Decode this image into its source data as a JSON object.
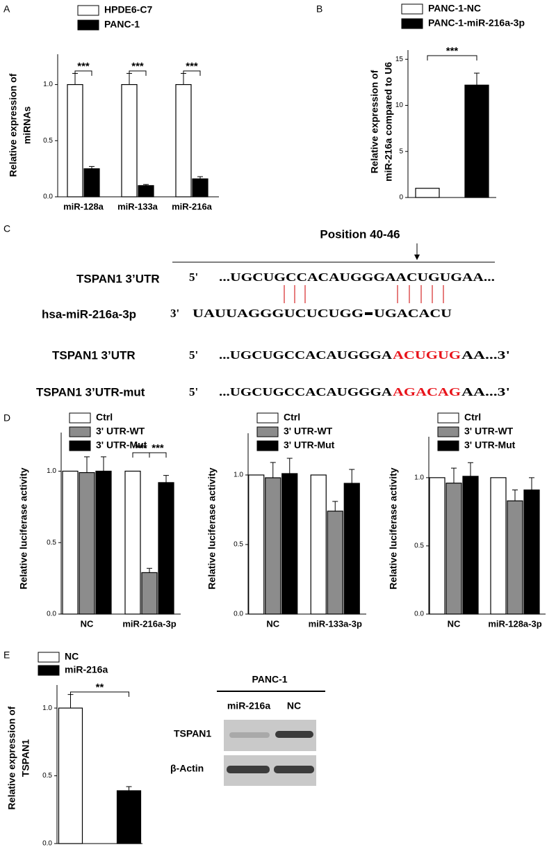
{
  "panel_labels": [
    "A",
    "B",
    "C",
    "D",
    "E"
  ],
  "chart_data": [
    {
      "type": "bar",
      "y_label": [
        "Relative  expression of",
        "miRNAs"
      ],
      "categories": [
        "miR-128a",
        "miR-133a",
        "miR-216a"
      ],
      "series": [
        {
          "name": "HPDE6-C7",
          "color": "#ffffff",
          "values": [
            1,
            1,
            1
          ],
          "errors": [
            0.1,
            0.1,
            0.1
          ]
        },
        {
          "name": "PANC-1",
          "color": "#000000",
          "values": [
            0.25,
            0.1,
            0.16
          ],
          "errors": [
            0.02,
            0.01,
            0.02
          ]
        }
      ],
      "ylim": [
        0,
        1.27
      ],
      "yticks": [
        {
          "value": 0,
          "label": "0.0"
        },
        {
          "value": 0.5,
          "label": "0.5"
        },
        {
          "value": 1,
          "label": "1.0"
        }
      ],
      "annotations": [
        "***",
        "***",
        "***"
      ]
    },
    {
      "type": "bar",
      "y_label": [
        "Relative expression of",
        "miR-216a compared to U6"
      ],
      "categories": [
        null
      ],
      "series": [
        {
          "name": "PANC-1-NC",
          "color": "#ffffff",
          "values": [
            1
          ],
          "errors": [
            0
          ]
        },
        {
          "name": "PANC-1-miR-216a-3p",
          "color": "#000000",
          "values": [
            12.2
          ],
          "errors": [
            1.3
          ]
        }
      ],
      "ylim": [
        0,
        16
      ],
      "yticks": [
        0,
        5,
        10,
        15
      ],
      "annotations": [
        "***"
      ]
    },
    {
      "type": "bar",
      "y_label": [
        "Relative luciferase activity"
      ],
      "categories": [
        "NC",
        "miR-216a-3p"
      ],
      "series": [
        {
          "name": "Ctrl",
          "color": "#ffffff",
          "values": [
            1,
            1
          ],
          "errors": [
            0,
            0
          ]
        },
        {
          "name": "3' UTR-WT",
          "color": "#8c8c8c",
          "values": [
            0.99,
            0.29
          ],
          "errors": [
            0.11,
            0.03
          ]
        },
        {
          "name": "3' UTR-Mut",
          "color": "#000000",
          "values": [
            1,
            0.92
          ],
          "errors": [
            0.1,
            0.05
          ]
        }
      ],
      "ylim": [
        0,
        1.27
      ],
      "yticks": [
        {
          "value": 0,
          "label": "0.0"
        },
        {
          "value": 0.5,
          "label": "0.5"
        },
        {
          "value": 1,
          "label": "1.0"
        }
      ],
      "annotations": [
        "***",
        "***"
      ]
    },
    {
      "type": "bar",
      "y_label": [
        "Relative luciferase activity"
      ],
      "categories": [
        "NC",
        "miR-133a-3p"
      ],
      "series": [
        {
          "name": "Ctrl",
          "color": "#ffffff",
          "values": [
            1,
            1
          ],
          "errors": [
            0,
            0
          ]
        },
        {
          "name": "3' UTR-WT",
          "color": "#8c8c8c",
          "values": [
            0.98,
            0.74
          ],
          "errors": [
            0.11,
            0.07
          ]
        },
        {
          "name": "3' UTR-Mut",
          "color": "#000000",
          "values": [
            1.01,
            0.94
          ],
          "errors": [
            0.11,
            0.1
          ]
        }
      ],
      "ylim": [
        0,
        1.3
      ],
      "yticks": [
        {
          "value": 0,
          "label": "0.0"
        },
        {
          "value": 0.5,
          "label": "0.5"
        },
        {
          "value": 1,
          "label": "1.0"
        }
      ],
      "annotations": []
    },
    {
      "type": "bar",
      "y_label": [
        "Relative luciferase activity"
      ],
      "categories": [
        "NC",
        "miR-128a-3p"
      ],
      "series": [
        {
          "name": "Ctrl",
          "color": "#ffffff",
          "values": [
            1,
            1
          ],
          "errors": [
            0,
            0
          ]
        },
        {
          "name": "3' UTR-WT",
          "color": "#8c8c8c",
          "values": [
            0.96,
            0.83
          ],
          "errors": [
            0.11,
            0.08
          ]
        },
        {
          "name": "3' UTR-Mut",
          "color": "#000000",
          "values": [
            1.01,
            0.91
          ],
          "errors": [
            0.1,
            0.09
          ]
        }
      ],
      "ylim": [
        0,
        1.3
      ],
      "yticks": [
        {
          "value": 0,
          "label": "0.0"
        },
        {
          "value": 0.5,
          "label": "0.5"
        },
        {
          "value": 1,
          "label": "1.0"
        }
      ],
      "annotations": []
    },
    {
      "type": "bar",
      "y_label": [
        "Relative  expression of",
        "TSPAN1"
      ],
      "categories": [
        null
      ],
      "series": [
        {
          "name": "NC",
          "color": "#ffffff",
          "values": [
            1
          ],
          "errors": [
            0.1
          ]
        },
        {
          "name": "miR-216a",
          "color": "#000000",
          "values": [
            0.39
          ],
          "errors": [
            0.03
          ]
        }
      ],
      "ylim": [
        0,
        1.17
      ],
      "yticks": [
        {
          "value": 0,
          "label": "0.0"
        },
        {
          "value": 0.5,
          "label": "0.5"
        },
        {
          "value": 1,
          "label": "1.0"
        }
      ],
      "annotations": [
        "**"
      ]
    }
  ],
  "sequence": {
    "position": "Position 40-46",
    "rows": [
      {
        "label": "TSPAN1 3’UTR",
        "end": "5'",
        "parts": [
          "...UGCUGCCACAUGGGAACUGUGAA..."
        ]
      },
      {
        "label": "hsa-miR-216a-3p",
        "end": "3'",
        "parts": [
          "UAUUAGGGUCUCUGG",
          "UGACACU"
        ]
      },
      {
        "label": "TSPAN1 3’UTR",
        "end": "5'",
        "parts": [
          "...UGCUGCCACAUGGGA",
          "ACUGUG",
          "AA...3'"
        ]
      },
      {
        "label": "TSPAN1 3’UTR-mut",
        "end": "5'",
        "parts": [
          "...UGCUGCCACAUGGGA",
          "AGACAG",
          "AA...3'"
        ]
      }
    ]
  },
  "blot": {
    "title": "PANC-1",
    "lanes": [
      "miR-216a",
      "NC"
    ],
    "rows": [
      "TSPAN1",
      "β-Actin"
    ]
  }
}
